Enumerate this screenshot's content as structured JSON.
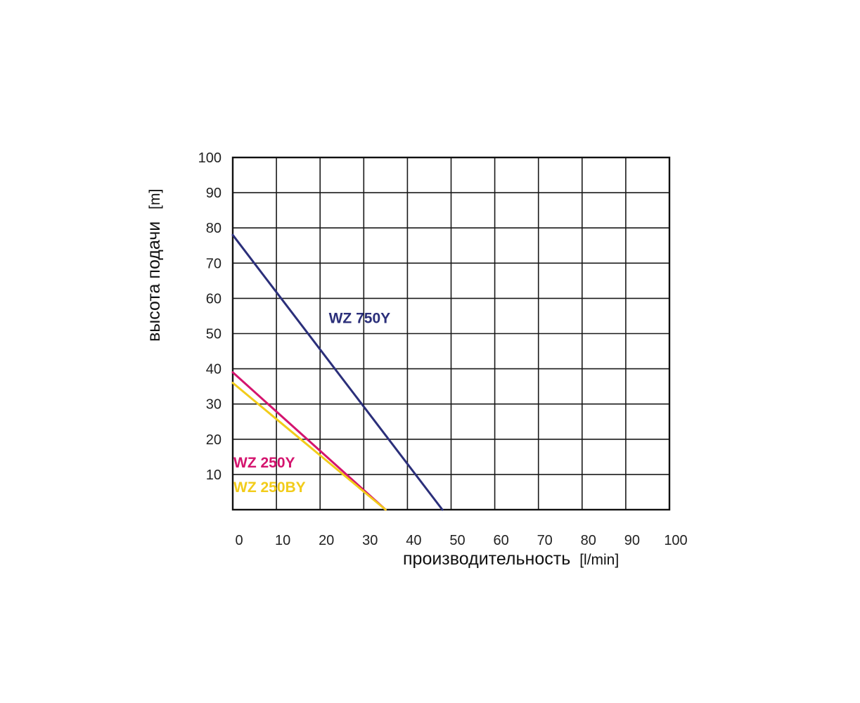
{
  "chart_data": {
    "type": "line",
    "xlabel": "производительность",
    "xunit": "[l/min]",
    "ylabel": "высота подачи",
    "yunit": "[m]",
    "xlim": [
      0,
      100
    ],
    "ylim": [
      0,
      100
    ],
    "x_ticks": [
      "0",
      "10",
      "20",
      "30",
      "40",
      "50",
      "60",
      "70",
      "80",
      "90",
      "100"
    ],
    "y_ticks": [
      "10",
      "20",
      "30",
      "40",
      "50",
      "60",
      "70",
      "80",
      "90",
      "100"
    ],
    "grid": true,
    "series": [
      {
        "name": "WZ 750Y",
        "color": "#2b2f7a",
        "points": [
          [
            0,
            78
          ],
          [
            48,
            0
          ]
        ]
      },
      {
        "name": "WZ 250Y",
        "color": "#d4146e",
        "points": [
          [
            0,
            39
          ],
          [
            35,
            0
          ]
        ]
      },
      {
        "name": "WZ 250BY",
        "color": "#f2cc1a",
        "points": [
          [
            0,
            36
          ],
          [
            35,
            0
          ]
        ]
      }
    ]
  }
}
